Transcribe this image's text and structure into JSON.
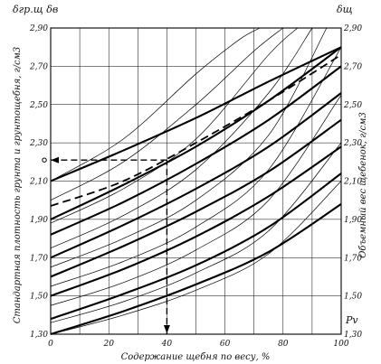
{
  "chart_data": {
    "type": "line",
    "title": "",
    "xlabel": "Содержание щебня по весу, %",
    "ylabel_left": "Стандартная плотность грунта и грунтощебня, г/см3",
    "ylabel_right": "Объемный вес щебенок, г/см3",
    "top_left_symbol": "δгр.щ δв",
    "top_right_symbol": "δщ",
    "bottom_right_symbol": "Pv",
    "xlim": [
      0,
      100
    ],
    "ylim": [
      1.3,
      2.9
    ],
    "x_ticks": [
      "0",
      "20",
      "40",
      "60",
      "80",
      "100"
    ],
    "y_ticks": [
      "1,30",
      "1,50",
      "1,70",
      "1,90",
      "2,10",
      "2,30",
      "2,50",
      "2,70",
      "2,90"
    ],
    "y_ticks_right": [
      "1,30",
      "1,50",
      "1,70",
      "1,90",
      "2,10",
      "2,30",
      "2,50",
      "2,70",
      "2,90"
    ],
    "grid": true,
    "series": [
      {
        "style": "thick",
        "x": [
          0,
          25,
          50,
          75,
          100
        ],
        "y": [
          1.3,
          1.42,
          1.56,
          1.73,
          1.98
        ]
      },
      {
        "style": "thick",
        "x": [
          0,
          25,
          50,
          75,
          100
        ],
        "y": [
          1.38,
          1.51,
          1.66,
          1.86,
          2.14
        ]
      },
      {
        "style": "thick",
        "x": [
          0,
          25,
          50,
          75,
          100
        ],
        "y": [
          1.5,
          1.64,
          1.81,
          2.02,
          2.28
        ]
      },
      {
        "style": "thick",
        "x": [
          0,
          25,
          50,
          75,
          100
        ],
        "y": [
          1.6,
          1.76,
          1.94,
          2.15,
          2.42
        ]
      },
      {
        "style": "thick",
        "x": [
          0,
          25,
          50,
          75,
          100
        ],
        "y": [
          1.7,
          1.87,
          2.06,
          2.28,
          2.56
        ]
      },
      {
        "style": "thick",
        "x": [
          0,
          25,
          50,
          75,
          100
        ],
        "y": [
          1.82,
          1.99,
          2.19,
          2.42,
          2.7
        ]
      },
      {
        "style": "thick",
        "x": [
          0,
          25,
          50,
          75,
          100
        ],
        "y": [
          1.9,
          2.08,
          2.28,
          2.52,
          2.8
        ]
      },
      {
        "style": "thick",
        "x": [
          0,
          25,
          50,
          75,
          100
        ],
        "y": [
          2.1,
          2.26,
          2.43,
          2.62,
          2.8
        ]
      },
      {
        "style": "thin",
        "x": [
          0,
          25,
          50,
          75,
          100
        ],
        "y": [
          1.3,
          1.4,
          1.53,
          1.72,
          2.1
        ]
      },
      {
        "style": "thin",
        "x": [
          0,
          25,
          50,
          75,
          100
        ],
        "y": [
          1.36,
          1.47,
          1.62,
          1.84,
          2.3
        ]
      },
      {
        "style": "thin",
        "x": [
          0,
          25,
          50,
          75,
          100
        ],
        "y": [
          1.45,
          1.57,
          1.74,
          2.0,
          2.55
        ]
      },
      {
        "style": "thin",
        "x": [
          0,
          25,
          50,
          75,
          100
        ],
        "y": [
          1.55,
          1.68,
          1.86,
          2.16,
          2.8
        ]
      },
      {
        "style": "thin",
        "x": [
          0,
          25,
          50,
          75,
          95
        ],
        "y": [
          1.65,
          1.8,
          2.0,
          2.34,
          2.9
        ]
      },
      {
        "style": "thin",
        "x": [
          0,
          25,
          50,
          75,
          90
        ],
        "y": [
          1.75,
          1.92,
          2.16,
          2.56,
          2.9
        ]
      },
      {
        "style": "thin",
        "x": [
          0,
          25,
          50,
          75,
          85
        ],
        "y": [
          1.88,
          2.06,
          2.32,
          2.76,
          2.9
        ]
      },
      {
        "style": "thin",
        "x": [
          0,
          25,
          50,
          70,
          80
        ],
        "y": [
          2.0,
          2.2,
          2.5,
          2.78,
          2.9
        ]
      },
      {
        "style": "thin",
        "x": [
          0,
          25,
          50,
          65,
          72
        ],
        "y": [
          2.1,
          2.32,
          2.66,
          2.84,
          2.9
        ]
      },
      {
        "style": "dashed",
        "x": [
          0,
          25,
          50,
          75,
          100
        ],
        "y": [
          1.97,
          2.1,
          2.3,
          2.52,
          2.76
        ]
      }
    ],
    "reading_lines": [
      {
        "style": "dashed",
        "from": [
          40,
          1.3
        ],
        "to": [
          40,
          2.21
        ]
      },
      {
        "style": "dashed",
        "from": [
          40,
          2.21
        ],
        "to": [
          0,
          2.21
        ]
      }
    ]
  }
}
